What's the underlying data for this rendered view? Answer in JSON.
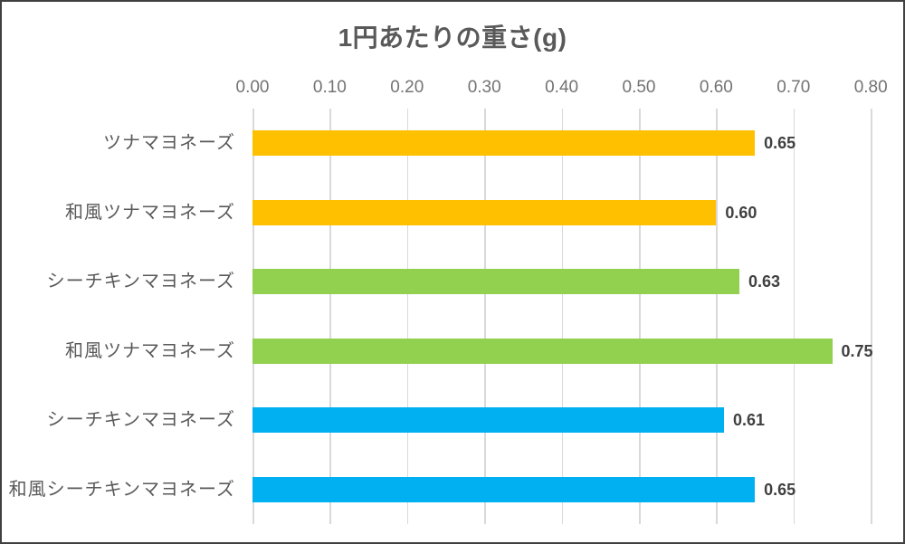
{
  "chart_data": {
    "type": "bar",
    "orientation": "horizontal",
    "title": "1円あたりの重さ(g)",
    "categories": [
      "ツナマヨネーズ",
      "和風ツナマヨネーズ",
      "シーチキンマヨネーズ",
      "和風ツナマヨネーズ",
      "シーチキンマヨネーズ",
      "和風シーチキンマヨネーズ"
    ],
    "values": [
      0.65,
      0.6,
      0.63,
      0.75,
      0.61,
      0.65
    ],
    "value_labels": [
      "0.65",
      "0.60",
      "0.63",
      "0.75",
      "0.61",
      "0.65"
    ],
    "bar_colors": [
      "#FFC000",
      "#FFC000",
      "#92D050",
      "#92D050",
      "#00B0F0",
      "#00B0F0"
    ],
    "x_ticks": [
      "0.00",
      "0.10",
      "0.20",
      "0.30",
      "0.40",
      "0.50",
      "0.60",
      "0.70",
      "0.80"
    ],
    "xlim": [
      0,
      0.8
    ],
    "xlabel": "",
    "ylabel": "",
    "axis_position": "top",
    "grid": true,
    "legend": false,
    "colors": {
      "gridline": "#D9D9D9",
      "title_text": "#595959",
      "category_text": "#595959",
      "tick_text": "#737373",
      "value_text": "#404040",
      "border": "#404040",
      "background": "#FFFFFF"
    }
  }
}
